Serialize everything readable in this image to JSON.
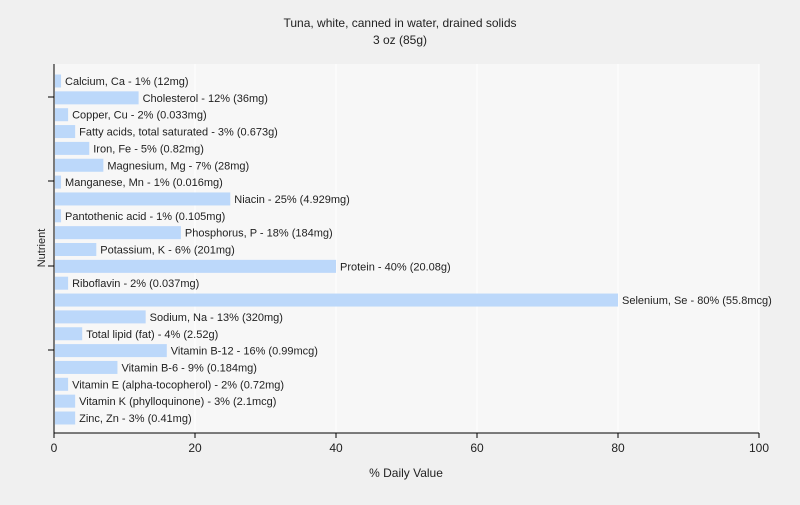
{
  "chart_data": {
    "type": "bar",
    "orientation": "horizontal",
    "title": "Tuna, white, canned in water, drained solids",
    "subtitle": "3 oz (85g)",
    "xlabel": "% Daily Value",
    "ylabel": "Nutrient",
    "xlim": [
      0,
      100
    ],
    "xticks": [
      0,
      20,
      40,
      60,
      80,
      100
    ],
    "grid": true,
    "legend": "none",
    "colors": {
      "background": "#f0f0f0",
      "plot_background": "#f7f7f7",
      "bar": "#bcd8fa",
      "grid": "#ffffff",
      "axis": "#000000",
      "text": "#222222"
    },
    "categories": [
      "Calcium, Ca",
      "Cholesterol",
      "Copper, Cu",
      "Fatty acids, total saturated",
      "Iron, Fe",
      "Magnesium, Mg",
      "Manganese, Mn",
      "Niacin",
      "Pantothenic acid",
      "Phosphorus, P",
      "Potassium, K",
      "Protein",
      "Riboflavin",
      "Selenium, Se",
      "Sodium, Na",
      "Total lipid (fat)",
      "Vitamin B-12",
      "Vitamin B-6",
      "Vitamin E (alpha-tocopherol)",
      "Vitamin K (phylloquinone)",
      "Zinc, Zn"
    ],
    "values": [
      1,
      12,
      2,
      3,
      5,
      7,
      1,
      25,
      1,
      18,
      6,
      40,
      2,
      80,
      13,
      4,
      16,
      9,
      2,
      3,
      3
    ],
    "labels": [
      "Calcium, Ca - 1% (12mg)",
      "Cholesterol - 12% (36mg)",
      "Copper, Cu - 2% (0.033mg)",
      "Fatty acids, total saturated - 3% (0.673g)",
      "Iron, Fe - 5% (0.82mg)",
      "Magnesium, Mg - 7% (28mg)",
      "Manganese, Mn - 1% (0.016mg)",
      "Niacin - 25% (4.929mg)",
      "Pantothenic acid - 1% (0.105mg)",
      "Phosphorus, P - 18% (184mg)",
      "Potassium, K - 6% (201mg)",
      "Protein - 40% (20.08g)",
      "Riboflavin - 2% (0.037mg)",
      "Selenium, Se - 80% (55.8mcg)",
      "Sodium, Na - 13% (320mg)",
      "Total lipid (fat) - 4% (2.52g)",
      "Vitamin B-12 - 16% (0.99mcg)",
      "Vitamin B-6 - 9% (0.184mg)",
      "Vitamin E (alpha-tocopherol) - 2% (0.72mg)",
      "Vitamin K (phylloquinone) - 3% (2.1mcg)",
      "Zinc, Zn - 3% (0.41mg)"
    ]
  }
}
